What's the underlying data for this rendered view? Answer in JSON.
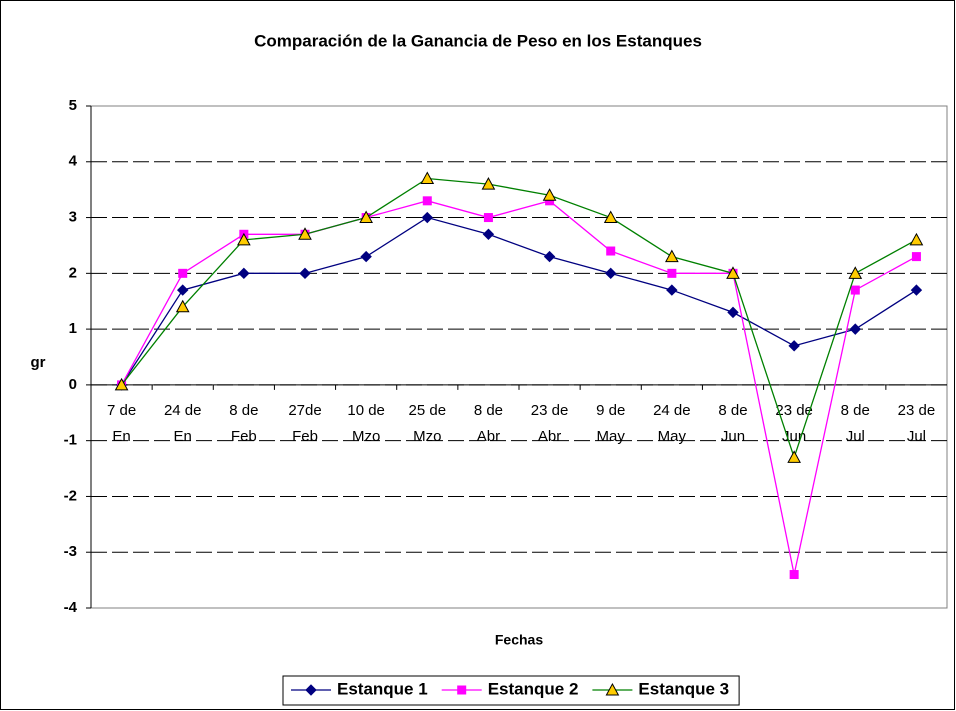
{
  "chart_data": {
    "type": "line",
    "title": "Comparación de la Ganancia de Peso en los Estanques",
    "y_label": "gr",
    "x_label": "Fechas",
    "categories": [
      [
        "7 de",
        "En"
      ],
      [
        "24 de",
        "En"
      ],
      [
        "8 de",
        "Feb"
      ],
      [
        "27de",
        "Feb"
      ],
      [
        "10 de",
        "Mzo"
      ],
      [
        "25 de",
        "Mzo"
      ],
      [
        "8 de",
        "Abr"
      ],
      [
        "23 de",
        "Abr"
      ],
      [
        "9 de",
        "May"
      ],
      [
        "24 de",
        "May"
      ],
      [
        "8 de",
        "Jun"
      ],
      [
        "23 de",
        "Jun"
      ],
      [
        "8 de",
        "Jul"
      ],
      [
        "23 de",
        "Jul"
      ]
    ],
    "series": [
      {
        "name": "Estanque 1",
        "color": "#000080",
        "marker": "diamond",
        "marker_color": "#000080",
        "values": [
          0,
          1.7,
          2,
          2,
          2.3,
          3,
          2.7,
          2.3,
          2,
          1.7,
          1.3,
          0.7,
          1,
          1.7
        ]
      },
      {
        "name": "Estanque 2",
        "color": "#FF00FF",
        "marker": "square",
        "marker_color": "#FF00FF",
        "values": [
          0,
          2,
          2.7,
          2.7,
          3,
          3.3,
          3,
          3.3,
          2.4,
          2,
          2,
          -3.4,
          1.7,
          2.3
        ]
      },
      {
        "name": "Estanque 3",
        "color": "#008000",
        "marker": "triangle",
        "marker_color": "#FFCC00",
        "values": [
          0,
          1.4,
          2.6,
          2.7,
          3,
          3.7,
          3.6,
          3.4,
          3,
          2.3,
          2,
          -1.3,
          2,
          2.6
        ]
      }
    ],
    "ylim": [
      -4,
      5
    ],
    "yticks": [
      -4,
      -3,
      -2,
      -1,
      0,
      1,
      2,
      3,
      4,
      5
    ],
    "grid": true,
    "legend": "bottom"
  }
}
